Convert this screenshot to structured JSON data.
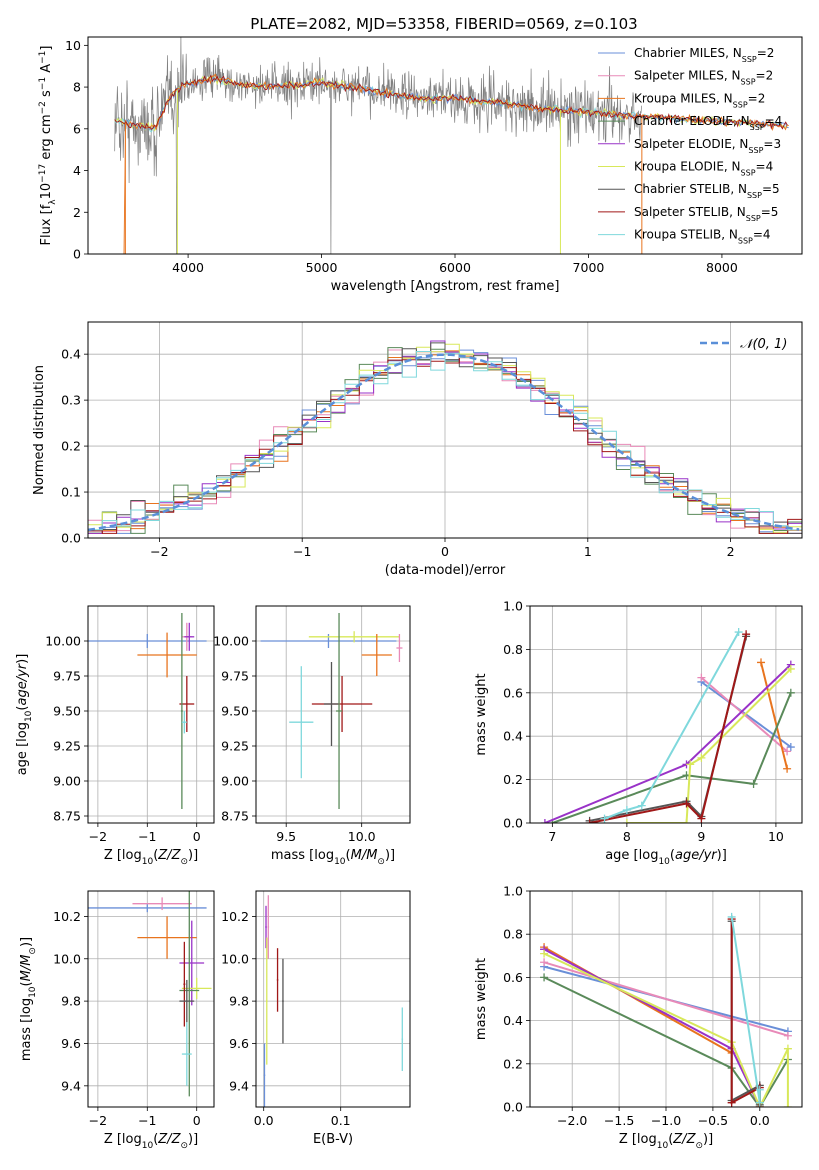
{
  "title": "PLATE=2082, MJD=53358, FIBERID=0569, z=0.103",
  "colors": {
    "chabrier_miles": "#6a8fd8",
    "salpeter_miles": "#e88ab8",
    "kroupa_miles": "#e8741e",
    "chabrier_elodie": "#5a8a5a",
    "salpeter_elodie": "#9932c8",
    "kroupa_elodie": "#d8e85a",
    "chabrier_stelib": "#555555",
    "salpeter_stelib": "#a01818",
    "kroupa_stelib": "#7fd8dc",
    "data_spectrum": "#808080",
    "normal_curve": "#5a8fd8"
  },
  "chart_data": [
    {
      "id": "spectrum",
      "type": "line",
      "xlabel": "wavelength [Angstrom, rest frame]",
      "ylabel": "Flux [f_λ 10^-17 erg cm^-2 s^-1 A^-1]",
      "xlim": [
        3250,
        8600
      ],
      "ylim": [
        0,
        10.4
      ],
      "xticks": [
        4000,
        5000,
        6000,
        7000,
        8000
      ],
      "yticks": [
        0,
        2,
        4,
        6,
        8,
        10
      ],
      "grid": false,
      "legend_position": "right",
      "legend": [
        {
          "key": "chabrier_miles",
          "prefix": "Chabrier MILES, N",
          "value": "=2"
        },
        {
          "key": "salpeter_miles",
          "prefix": "Salpeter MILES, N",
          "value": "=2"
        },
        {
          "key": "kroupa_miles",
          "prefix": "Kroupa MILES, N",
          "value": "=2"
        },
        {
          "key": "chabrier_elodie",
          "prefix": "Chabrier ELODIE, N",
          "value": "=4"
        },
        {
          "key": "salpeter_elodie",
          "prefix": "Salpeter ELODIE, N",
          "value": "=3"
        },
        {
          "key": "kroupa_elodie",
          "prefix": "Kroupa ELODIE, N",
          "value": "=4"
        },
        {
          "key": "chabrier_stelib",
          "prefix": "Chabrier STELIB, N",
          "value": "=5"
        },
        {
          "key": "salpeter_stelib",
          "prefix": "Salpeter STELIB, N",
          "value": "=5"
        },
        {
          "key": "kroupa_stelib",
          "prefix": "Kroupa STELIB, N",
          "value": "=4"
        }
      ],
      "legend_subscript": "SSP",
      "continuum_points": [
        [
          3450,
          6.4
        ],
        [
          3600,
          6.2
        ],
        [
          3750,
          6.0
        ],
        [
          3850,
          7.4
        ],
        [
          3950,
          8.1
        ],
        [
          4100,
          8.3
        ],
        [
          4200,
          8.4
        ],
        [
          4400,
          8.1
        ],
        [
          4600,
          8.0
        ],
        [
          4800,
          8.1
        ],
        [
          5000,
          8.2
        ],
        [
          5200,
          8.0
        ],
        [
          5400,
          7.8
        ],
        [
          5600,
          7.6
        ],
        [
          5800,
          7.4
        ],
        [
          6000,
          7.5
        ],
        [
          6200,
          7.3
        ],
        [
          6400,
          7.2
        ],
        [
          6600,
          7.0
        ],
        [
          6800,
          6.9
        ],
        [
          7000,
          6.8
        ],
        [
          7200,
          6.7
        ],
        [
          7400,
          6.6
        ]
      ],
      "data_range": [
        3450,
        7400
      ]
    },
    {
      "id": "residuals",
      "type": "line",
      "xlabel": "(data-model)/error",
      "ylabel": "Normed distribution",
      "xlim": [
        -2.5,
        2.5
      ],
      "ylim": [
        0,
        0.47
      ],
      "xticks": [
        -2,
        -1,
        0,
        1,
        2
      ],
      "yticks": [
        0.0,
        0.1,
        0.2,
        0.3,
        0.4
      ],
      "grid": true,
      "legend_position": "top-right",
      "legend": [
        "𝒩(0, 1)"
      ]
    },
    {
      "id": "age_vs_Z",
      "type": "scatter",
      "xlabel": "Z [log10(Z/Z⊙)]",
      "ylabel": "age [log10(age/yr)]",
      "xlim": [
        -2.2,
        0.35
      ],
      "ylim": [
        8.7,
        10.25
      ],
      "xticks": [
        -2,
        -1,
        0
      ],
      "yticks": [
        8.75,
        9.0,
        9.25,
        9.5,
        9.75,
        10.0
      ],
      "grid": true,
      "points": [
        {
          "key": "chabrier_miles",
          "x": -1.0,
          "y": 10.0,
          "xerr": 1.2,
          "yerr": 0.05
        },
        {
          "key": "kroupa_miles",
          "x": -0.6,
          "y": 9.9,
          "xerr": 0.6,
          "yerr": 0.16
        },
        {
          "key": "salpeter_miles",
          "x": -0.2,
          "y": 10.03,
          "xerr": 0.1,
          "yerr": 0.1
        },
        {
          "key": "salpeter_elodie",
          "x": -0.15,
          "y": 10.03,
          "xerr": 0.1,
          "yerr": 0.1
        },
        {
          "key": "salpeter_stelib",
          "x": -0.2,
          "y": 9.55,
          "xerr": 0.15,
          "yerr": 0.2
        },
        {
          "key": "chabrier_elodie",
          "x": -0.3,
          "y": 9.5,
          "xerr": 0.02,
          "yerr": 0.7
        },
        {
          "key": "kroupa_stelib",
          "x": -0.25,
          "y": 9.42,
          "xerr": 0.05,
          "yerr": 0.08
        }
      ]
    },
    {
      "id": "age_vs_mass",
      "type": "scatter",
      "xlabel": "mass [log10(M/M⊙)]",
      "ylabel": "",
      "xlim": [
        9.3,
        10.32
      ],
      "ylim": [
        8.7,
        10.25
      ],
      "xticks": [
        9.5,
        10.0
      ],
      "yticks": [
        8.75,
        9.0,
        9.25,
        9.5,
        9.75,
        10.0
      ],
      "grid": true,
      "points": [
        {
          "key": "chabrier_miles",
          "x": 9.78,
          "y": 10.0,
          "xerr": 0.45,
          "yerr": 0.05
        },
        {
          "key": "kroupa_elodie",
          "x": 9.95,
          "y": 10.03,
          "xerr": 0.3,
          "yerr": 0.04
        },
        {
          "key": "kroupa_miles",
          "x": 10.1,
          "y": 9.9,
          "xerr": 0.1,
          "yerr": 0.15
        },
        {
          "key": "salpeter_miles",
          "x": 10.25,
          "y": 9.95,
          "xerr": 0.02,
          "yerr": 0.1
        },
        {
          "key": "salpeter_stelib",
          "x": 9.87,
          "y": 9.55,
          "xerr": 0.2,
          "yerr": 0.2
        },
        {
          "key": "chabrier_stelib",
          "x": 9.8,
          "y": 9.55,
          "xerr": 0.05,
          "yerr": 0.3
        },
        {
          "key": "chabrier_elodie",
          "x": 9.85,
          "y": 9.5,
          "xerr": 0.02,
          "yerr": 0.7
        },
        {
          "key": "kroupa_stelib",
          "x": 9.6,
          "y": 9.42,
          "xerr": 0.08,
          "yerr": 0.4
        }
      ]
    },
    {
      "id": "weight_vs_age",
      "type": "line",
      "xlabel": "age [log10(age/yr)]",
      "ylabel": "mass weight",
      "xlim": [
        6.7,
        10.35
      ],
      "ylim": [
        0,
        1.0
      ],
      "xticks": [
        7,
        8,
        9,
        10
      ],
      "yticks": [
        0.0,
        0.2,
        0.4,
        0.6,
        0.8,
        1.0
      ],
      "grid": true,
      "series": [
        {
          "key": "chabrier_miles",
          "x": [
            9.0,
            10.2
          ],
          "y": [
            0.65,
            0.35
          ]
        },
        {
          "key": "salpeter_miles",
          "x": [
            9.0,
            10.15
          ],
          "y": [
            0.67,
            0.33
          ]
        },
        {
          "key": "kroupa_miles",
          "x": [
            9.8,
            10.15
          ],
          "y": [
            0.74,
            0.25
          ]
        },
        {
          "key": "chabrier_elodie",
          "x": [
            7.0,
            8.8,
            9.7,
            10.2
          ],
          "y": [
            0.0,
            0.22,
            0.18,
            0.6
          ]
        },
        {
          "key": "salpeter_elodie",
          "x": [
            6.9,
            8.8,
            10.2
          ],
          "y": [
            0.0,
            0.27,
            0.73
          ]
        },
        {
          "key": "kroupa_elodie",
          "x": [
            8.0,
            8.8,
            8.85,
            9.0,
            10.2
          ],
          "y": [
            0.0,
            0.0,
            0.27,
            0.3,
            0.71
          ]
        },
        {
          "key": "chabrier_stelib",
          "x": [
            7.5,
            8.8,
            9.0,
            9.6
          ],
          "y": [
            0.01,
            0.1,
            0.03,
            0.86
          ]
        },
        {
          "key": "salpeter_stelib",
          "x": [
            7.5,
            8.8,
            9.0,
            9.6
          ],
          "y": [
            0.0,
            0.09,
            0.02,
            0.87
          ]
        },
        {
          "key": "kroupa_stelib",
          "x": [
            7.7,
            8.0,
            8.2,
            9.5
          ],
          "y": [
            0.02,
            0.06,
            0.08,
            0.88
          ]
        }
      ]
    },
    {
      "id": "mass_vs_Z",
      "type": "scatter",
      "xlabel": "Z [log10(Z/Z⊙)]",
      "ylabel": "mass [log10(M/M⊙)]",
      "xlim": [
        -2.2,
        0.35
      ],
      "ylim": [
        9.3,
        10.32
      ],
      "xticks": [
        -2,
        -1,
        0
      ],
      "yticks": [
        9.4,
        9.6,
        9.8,
        10.0,
        10.2
      ],
      "grid": true,
      "points": [
        {
          "key": "chabrier_miles",
          "x": -1.0,
          "y": 10.24,
          "xerr": 1.2,
          "yerr": 0.02
        },
        {
          "key": "salpeter_miles",
          "x": -0.7,
          "y": 10.26,
          "xerr": 0.6,
          "yerr": 0.03
        },
        {
          "key": "kroupa_miles",
          "x": -0.6,
          "y": 10.1,
          "xerr": 0.6,
          "yerr": 0.1
        },
        {
          "key": "salpeter_elodie",
          "x": -0.1,
          "y": 9.98,
          "xerr": 0.25,
          "yerr": 0.2
        },
        {
          "key": "kroupa_elodie",
          "x": 0.0,
          "y": 9.86,
          "xerr": 0.3,
          "yerr": 0.05
        },
        {
          "key": "chabrier_elodie",
          "x": -0.15,
          "y": 9.85,
          "xerr": 0.2,
          "yerr": 0.5
        },
        {
          "key": "salpeter_stelib",
          "x": -0.25,
          "y": 9.88,
          "xerr": 0.02,
          "yerr": 0.2
        },
        {
          "key": "chabrier_stelib",
          "x": -0.2,
          "y": 9.8,
          "xerr": 0.15,
          "yerr": 0.1
        },
        {
          "key": "kroupa_stelib",
          "x": -0.2,
          "y": 9.55,
          "xerr": 0.1,
          "yerr": 0.15
        }
      ]
    },
    {
      "id": "mass_vs_ebv",
      "type": "scatter",
      "xlabel": "E(B-V)",
      "ylabel": "",
      "xlim": [
        -0.01,
        0.19
      ],
      "ylim": [
        9.3,
        10.32
      ],
      "xticks": [
        0.0,
        0.1
      ],
      "yticks": [
        9.4,
        9.6,
        9.8,
        10.0,
        10.2
      ],
      "grid": true,
      "points": [
        {
          "key": "chabrier_miles",
          "x": 0.001,
          "y": 9.45,
          "xerr": 0.001,
          "yerr": 0.15
        },
        {
          "key": "salpeter_elodie",
          "x": 0.003,
          "y": 10.15,
          "xerr": 0.001,
          "yerr": 0.1
        },
        {
          "key": "salpeter_miles",
          "x": 0.006,
          "y": 10.15,
          "xerr": 0.001,
          "yerr": 0.15
        },
        {
          "key": "kroupa_elodie",
          "x": 0.004,
          "y": 9.8,
          "xerr": 0.001,
          "yerr": 0.3
        },
        {
          "key": "salpeter_stelib",
          "x": 0.018,
          "y": 9.9,
          "xerr": 0.001,
          "yerr": 0.15
        },
        {
          "key": "chabrier_stelib",
          "x": 0.025,
          "y": 9.8,
          "xerr": 0.001,
          "yerr": 0.2
        },
        {
          "key": "kroupa_stelib",
          "x": 0.18,
          "y": 9.62,
          "xerr": 0.001,
          "yerr": 0.15
        }
      ]
    },
    {
      "id": "weight_vs_Z",
      "type": "line",
      "xlabel": "Z [log10(Z/Z⊙)]",
      "ylabel": "mass weight",
      "xlim": [
        -2.45,
        0.45
      ],
      "ylim": [
        0,
        1.0
      ],
      "xticks": [
        -2.0,
        -1.5,
        -1.0,
        -0.5,
        0.0
      ],
      "yticks": [
        0.0,
        0.2,
        0.4,
        0.6,
        0.8,
        1.0
      ],
      "grid": true,
      "series": [
        {
          "key": "chabrier_miles",
          "x": [
            -2.3,
            0.3
          ],
          "y": [
            0.65,
            0.35
          ]
        },
        {
          "key": "salpeter_miles",
          "x": [
            -2.3,
            0.3
          ],
          "y": [
            0.67,
            0.33
          ]
        },
        {
          "key": "kroupa_miles",
          "x": [
            -2.3,
            -0.3
          ],
          "y": [
            0.74,
            0.25
          ]
        },
        {
          "key": "chabrier_elodie",
          "x": [
            -2.3,
            -0.3,
            0.0,
            0.3
          ],
          "y": [
            0.6,
            0.18,
            0.0,
            0.22
          ]
        },
        {
          "key": "salpeter_elodie",
          "x": [
            -2.3,
            -0.3,
            0.0
          ],
          "y": [
            0.73,
            0.27,
            0.0
          ]
        },
        {
          "key": "kroupa_elodie",
          "x": [
            -2.3,
            -0.3,
            0.0,
            0.3,
            0.3
          ],
          "y": [
            0.71,
            0.3,
            0.0,
            0.27,
            0.0
          ]
        },
        {
          "key": "chabrier_stelib",
          "x": [
            -0.3,
            -0.3,
            0.0,
            0.0
          ],
          "y": [
            0.86,
            0.03,
            0.1,
            0.01
          ]
        },
        {
          "key": "salpeter_stelib",
          "x": [
            -0.3,
            -0.3,
            0.0,
            0.0
          ],
          "y": [
            0.87,
            0.02,
            0.09,
            0.0
          ]
        },
        {
          "key": "kroupa_stelib",
          "x": [
            -0.3,
            0.0,
            0.0
          ],
          "y": [
            0.88,
            0.02,
            0.08
          ]
        }
      ]
    }
  ]
}
